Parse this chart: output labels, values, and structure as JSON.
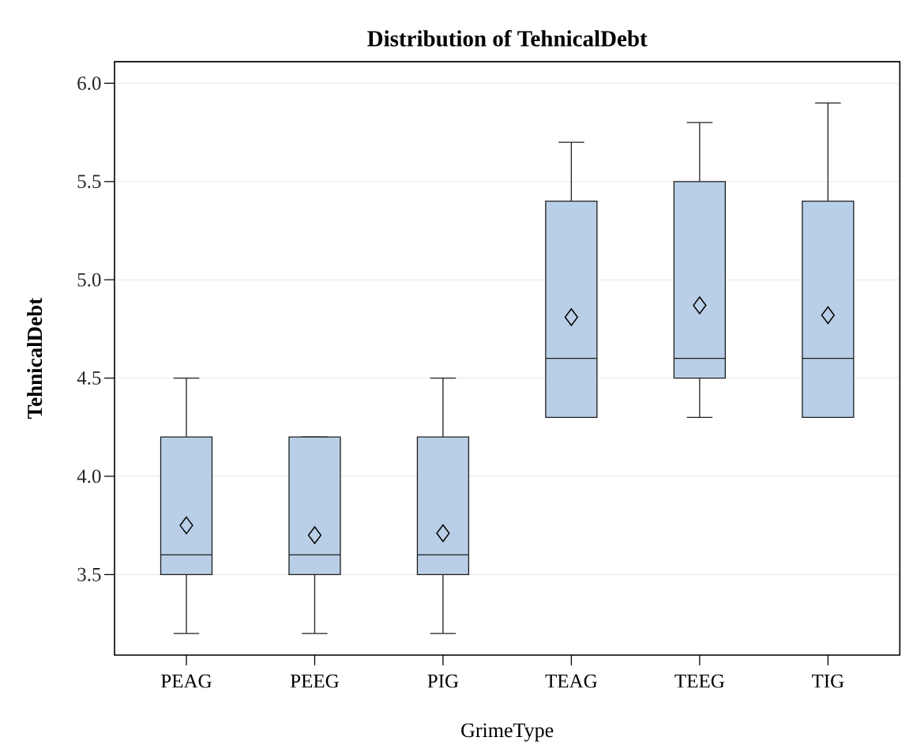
{
  "chart_data": {
    "type": "box",
    "title": "Distribution of TehnicalDebt",
    "xlabel": "GrimeType",
    "ylabel": "TehnicalDebt",
    "categories": [
      "PEAG",
      "PEEG",
      "PIG",
      "TEAG",
      "TEEG",
      "TIG"
    ],
    "color": "#b9cfe7",
    "boxes": [
      {
        "low": 3.2,
        "q1": 3.5,
        "median": 3.6,
        "q3": 4.2,
        "high": 4.5,
        "mean": 3.75
      },
      {
        "low": 3.2,
        "q1": 3.5,
        "median": 3.6,
        "q3": 4.2,
        "high": 4.2,
        "mean": 3.7
      },
      {
        "low": 3.2,
        "q1": 3.5,
        "median": 3.6,
        "q3": 4.2,
        "high": 4.5,
        "mean": 3.71
      },
      {
        "low": 4.3,
        "q1": 4.3,
        "median": 4.6,
        "q3": 5.4,
        "high": 5.7,
        "mean": 4.81
      },
      {
        "low": 4.3,
        "q1": 4.5,
        "median": 4.6,
        "q3": 5.5,
        "high": 5.8,
        "mean": 4.87
      },
      {
        "low": 4.3,
        "q1": 4.3,
        "median": 4.6,
        "q3": 5.4,
        "high": 5.9,
        "mean": 4.82
      }
    ],
    "ylim": [
      3.09,
      6.11
    ],
    "yticks": [
      3.5,
      {
        "value": 4,
        "label": "4.0"
      },
      4.5,
      {
        "value": 5,
        "label": "5.0"
      },
      5.5,
      {
        "value": 6,
        "label": "6.0"
      }
    ],
    "grid": "y",
    "marker": "diamond"
  }
}
